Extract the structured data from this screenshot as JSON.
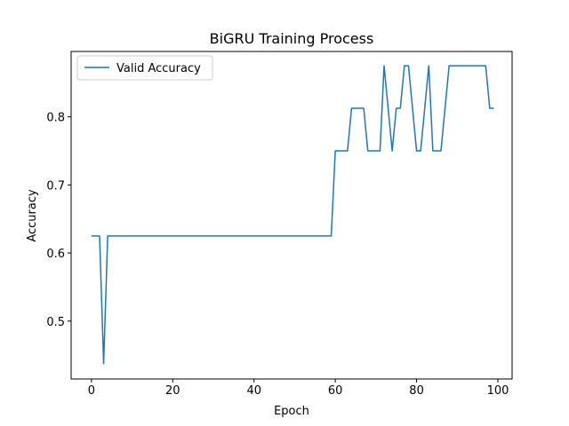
{
  "chart_data": {
    "type": "line",
    "title": "BiGRU Training Process",
    "xlabel": "Epoch",
    "ylabel": "Accuracy",
    "xlim": [
      -5,
      103.5
    ],
    "ylim": [
      0.415,
      0.896
    ],
    "xticks": [
      0,
      20,
      40,
      60,
      80,
      100
    ],
    "yticks": [
      0.5,
      0.6,
      0.7,
      0.8
    ],
    "xtick_labels": [
      "0",
      "20",
      "40",
      "60",
      "80",
      "100"
    ],
    "ytick_labels": [
      "0.5",
      "0.6",
      "0.7",
      "0.8"
    ],
    "grid": false,
    "legend_position": "upper-left",
    "series": [
      {
        "name": "Valid Accuracy",
        "color": "#1f77b4",
        "x": [
          0,
          1,
          2,
          3,
          4,
          5,
          6,
          7,
          8,
          9,
          10,
          11,
          12,
          13,
          14,
          15,
          16,
          17,
          18,
          19,
          20,
          21,
          22,
          23,
          24,
          25,
          26,
          27,
          28,
          29,
          30,
          31,
          32,
          33,
          34,
          35,
          36,
          37,
          38,
          39,
          40,
          41,
          42,
          43,
          44,
          45,
          46,
          47,
          48,
          49,
          50,
          51,
          52,
          53,
          54,
          55,
          56,
          57,
          58,
          59,
          60,
          61,
          62,
          63,
          64,
          65,
          66,
          67,
          68,
          69,
          70,
          71,
          72,
          73,
          74,
          75,
          76,
          77,
          78,
          79,
          80,
          81,
          82,
          83,
          84,
          85,
          86,
          87,
          88,
          89,
          90,
          91,
          92,
          93,
          94,
          95,
          96,
          97,
          98,
          99
        ],
        "y": [
          0.625,
          0.625,
          0.625,
          0.4375,
          0.625,
          0.625,
          0.625,
          0.625,
          0.625,
          0.625,
          0.625,
          0.625,
          0.625,
          0.625,
          0.625,
          0.625,
          0.625,
          0.625,
          0.625,
          0.625,
          0.625,
          0.625,
          0.625,
          0.625,
          0.625,
          0.625,
          0.625,
          0.625,
          0.625,
          0.625,
          0.625,
          0.625,
          0.625,
          0.625,
          0.625,
          0.625,
          0.625,
          0.625,
          0.625,
          0.625,
          0.625,
          0.625,
          0.625,
          0.625,
          0.625,
          0.625,
          0.625,
          0.625,
          0.625,
          0.625,
          0.625,
          0.625,
          0.625,
          0.625,
          0.625,
          0.625,
          0.625,
          0.625,
          0.625,
          0.625,
          0.75,
          0.75,
          0.75,
          0.75,
          0.8125,
          0.8125,
          0.8125,
          0.8125,
          0.75,
          0.75,
          0.75,
          0.75,
          0.875,
          0.8125,
          0.75,
          0.8125,
          0.8125,
          0.875,
          0.875,
          0.8125,
          0.75,
          0.75,
          0.8125,
          0.875,
          0.75,
          0.75,
          0.75,
          0.8125,
          0.875,
          0.875,
          0.875,
          0.875,
          0.875,
          0.875,
          0.875,
          0.875,
          0.875,
          0.875,
          0.8125,
          0.8125
        ]
      }
    ]
  }
}
